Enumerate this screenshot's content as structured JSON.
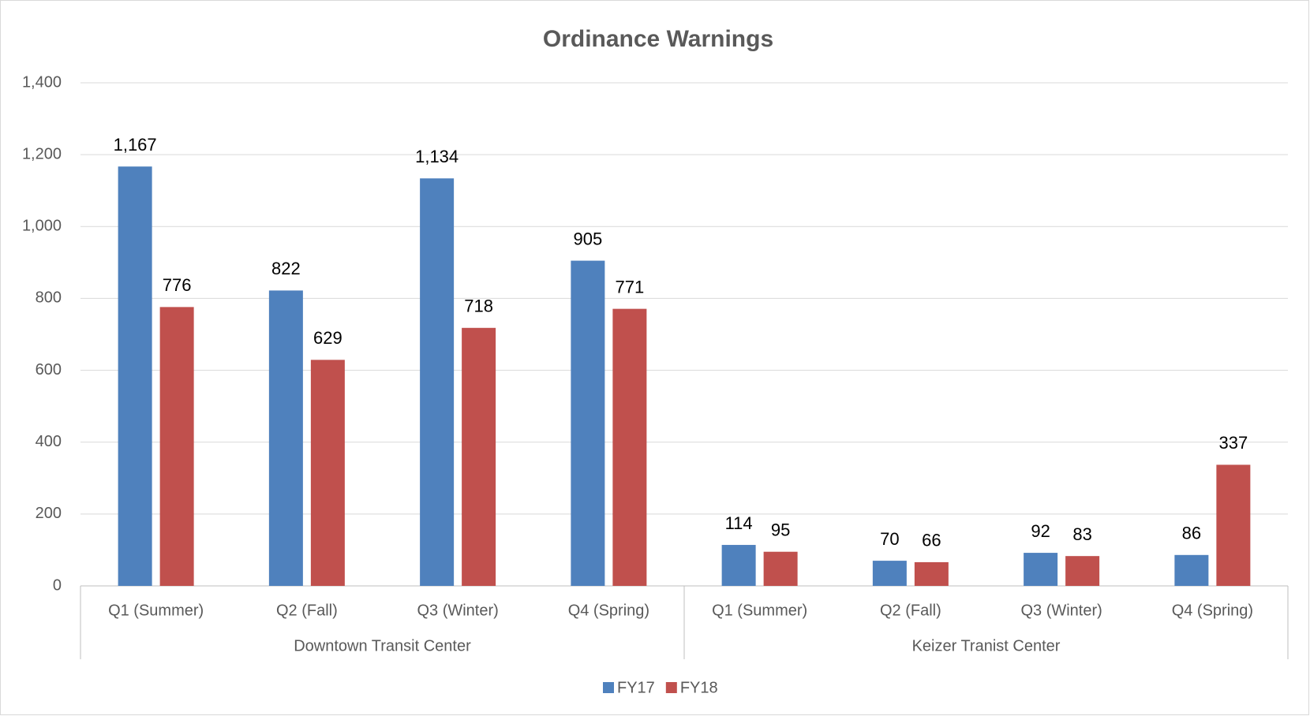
{
  "chart_data": {
    "type": "bar",
    "title": "Ordinance Warnings",
    "groups": [
      {
        "name": "Downtown Transit Center",
        "categories": [
          "Q1 (Summer)",
          "Q2 (Fall)",
          "Q3 (Winter)",
          "Q4 (Spring)"
        ]
      },
      {
        "name": "Keizer Tranist Center",
        "categories": [
          "Q1 (Summer)",
          "Q2 (Fall)",
          "Q3 (Winter)",
          "Q4 (Spring)"
        ]
      }
    ],
    "series": [
      {
        "name": "FY17",
        "color": "#4f81bd",
        "values": [
          1167,
          822,
          1134,
          905,
          114,
          70,
          92,
          86
        ],
        "value_labels": [
          "1,167",
          "822",
          "1,134",
          "905",
          "114",
          "70",
          "92",
          "86"
        ]
      },
      {
        "name": "FY18",
        "color": "#c0504d",
        "values": [
          776,
          629,
          718,
          771,
          95,
          66,
          83,
          337
        ],
        "value_labels": [
          "776",
          "629",
          "718",
          "771",
          "95",
          "66",
          "83",
          "337"
        ]
      }
    ],
    "ylim": [
      0,
      1400
    ],
    "yticks": [
      0,
      200,
      400,
      600,
      800,
      {
        "value": 1000,
        "label": "1,000"
      },
      {
        "value": 1200,
        "label": "1,200"
      },
      {
        "value": 1400,
        "label": "1,400"
      }
    ],
    "grid": true,
    "legend": "bottom"
  }
}
